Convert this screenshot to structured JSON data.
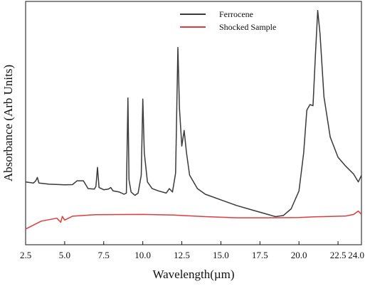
{
  "chart_data": {
    "type": "line",
    "xlabel": "Wavelength(µm)",
    "ylabel": "Absorbance (Arb Units)",
    "xlim": [
      2.5,
      24.0
    ],
    "ylim": [
      0,
      1
    ],
    "x_ticks": [
      "2.5",
      "5.0",
      "7.5",
      "10.0",
      "12.5",
      "15.0",
      "17.5",
      "20.0",
      "22.5",
      "24.0"
    ],
    "x_tick_values": [
      2.5,
      5.0,
      7.5,
      10.0,
      12.5,
      15.0,
      17.5,
      20.0,
      22.5,
      24.0
    ],
    "y_ticks_shown": false,
    "grid": false,
    "legend_position": "top-right",
    "series": [
      {
        "name": "Ferrocene",
        "color": "#3a3a3a",
        "points": [
          [
            2.5,
            0.22
          ],
          [
            3.0,
            0.215
          ],
          [
            3.15,
            0.225
          ],
          [
            3.25,
            0.24
          ],
          [
            3.35,
            0.215
          ],
          [
            4.0,
            0.21
          ],
          [
            5.0,
            0.207
          ],
          [
            5.5,
            0.208
          ],
          [
            5.8,
            0.225
          ],
          [
            6.2,
            0.225
          ],
          [
            6.5,
            0.19
          ],
          [
            6.9,
            0.188
          ],
          [
            7.0,
            0.2
          ],
          [
            7.1,
            0.285
          ],
          [
            7.2,
            0.195
          ],
          [
            7.5,
            0.185
          ],
          [
            7.8,
            0.188
          ],
          [
            7.95,
            0.195
          ],
          [
            8.1,
            0.18
          ],
          [
            8.5,
            0.175
          ],
          [
            8.8,
            0.165
          ],
          [
            8.95,
            0.17
          ],
          [
            9.05,
            0.595
          ],
          [
            9.12,
            0.23
          ],
          [
            9.25,
            0.175
          ],
          [
            9.5,
            0.16
          ],
          [
            9.7,
            0.17
          ],
          [
            9.9,
            0.25
          ],
          [
            10.0,
            0.59
          ],
          [
            10.1,
            0.35
          ],
          [
            10.3,
            0.22
          ],
          [
            10.6,
            0.19
          ],
          [
            11.0,
            0.18
          ],
          [
            11.5,
            0.17
          ],
          [
            11.7,
            0.19
          ],
          [
            11.9,
            0.175
          ],
          [
            12.1,
            0.26
          ],
          [
            12.25,
            0.82
          ],
          [
            12.35,
            0.55
          ],
          [
            12.5,
            0.38
          ],
          [
            12.65,
            0.45
          ],
          [
            12.8,
            0.35
          ],
          [
            13.0,
            0.25
          ],
          [
            13.5,
            0.19
          ],
          [
            14.0,
            0.165
          ],
          [
            15.0,
            0.14
          ],
          [
            16.0,
            0.115
          ],
          [
            17.0,
            0.095
          ],
          [
            18.0,
            0.075
          ],
          [
            18.5,
            0.065
          ],
          [
            19.0,
            0.07
          ],
          [
            19.5,
            0.1
          ],
          [
            20.0,
            0.18
          ],
          [
            20.3,
            0.35
          ],
          [
            20.5,
            0.54
          ],
          [
            20.7,
            0.565
          ],
          [
            20.9,
            0.56
          ],
          [
            21.05,
            0.78
          ],
          [
            21.2,
            0.985
          ],
          [
            21.35,
            0.88
          ],
          [
            21.6,
            0.6
          ],
          [
            22.0,
            0.42
          ],
          [
            22.5,
            0.33
          ],
          [
            23.0,
            0.29
          ],
          [
            23.5,
            0.255
          ],
          [
            23.8,
            0.22
          ],
          [
            24.0,
            0.25
          ]
        ]
      },
      {
        "name": "Shocked Sample",
        "color": "#e03c3c",
        "points": [
          [
            2.5,
            0.01
          ],
          [
            3.5,
            0.045
          ],
          [
            4.5,
            0.058
          ],
          [
            4.75,
            0.04
          ],
          [
            4.85,
            0.066
          ],
          [
            5.0,
            0.05
          ],
          [
            5.5,
            0.067
          ],
          [
            7.0,
            0.074
          ],
          [
            10.0,
            0.075
          ],
          [
            12.0,
            0.072
          ],
          [
            12.5,
            0.07
          ],
          [
            14.0,
            0.065
          ],
          [
            16.0,
            0.06
          ],
          [
            18.0,
            0.06
          ],
          [
            20.0,
            0.061
          ],
          [
            21.0,
            0.064
          ],
          [
            22.0,
            0.066
          ],
          [
            23.0,
            0.068
          ],
          [
            23.5,
            0.075
          ],
          [
            23.8,
            0.09
          ],
          [
            24.0,
            0.075
          ]
        ]
      }
    ]
  }
}
